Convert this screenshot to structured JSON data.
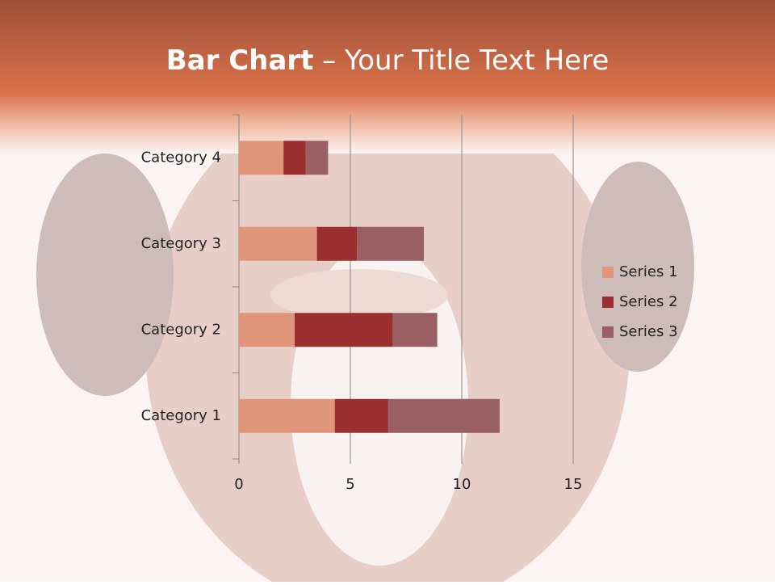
{
  "chart_data": {
    "type": "stacked-bar-horizontal",
    "title_parts": [
      "Bar Chart",
      "– Your Title Text Here"
    ],
    "categories": [
      "Category 1",
      "Category 2",
      "Category 3",
      "Category 4"
    ],
    "series": [
      {
        "name": "Series 1",
        "color": "#e0967a",
        "values": [
          4.3,
          2.5,
          3.5,
          2.0
        ]
      },
      {
        "name": "Series 2",
        "color": "#9b2f30",
        "values": [
          2.4,
          4.4,
          1.8,
          1.0
        ]
      },
      {
        "name": "Series 3",
        "color": "#9a5f63",
        "values": [
          5.0,
          2.0,
          3.0,
          1.0
        ]
      }
    ],
    "xlim": [
      0,
      15
    ],
    "xticks": [
      0,
      5,
      10,
      15
    ],
    "grid": true,
    "legend": "right"
  }
}
